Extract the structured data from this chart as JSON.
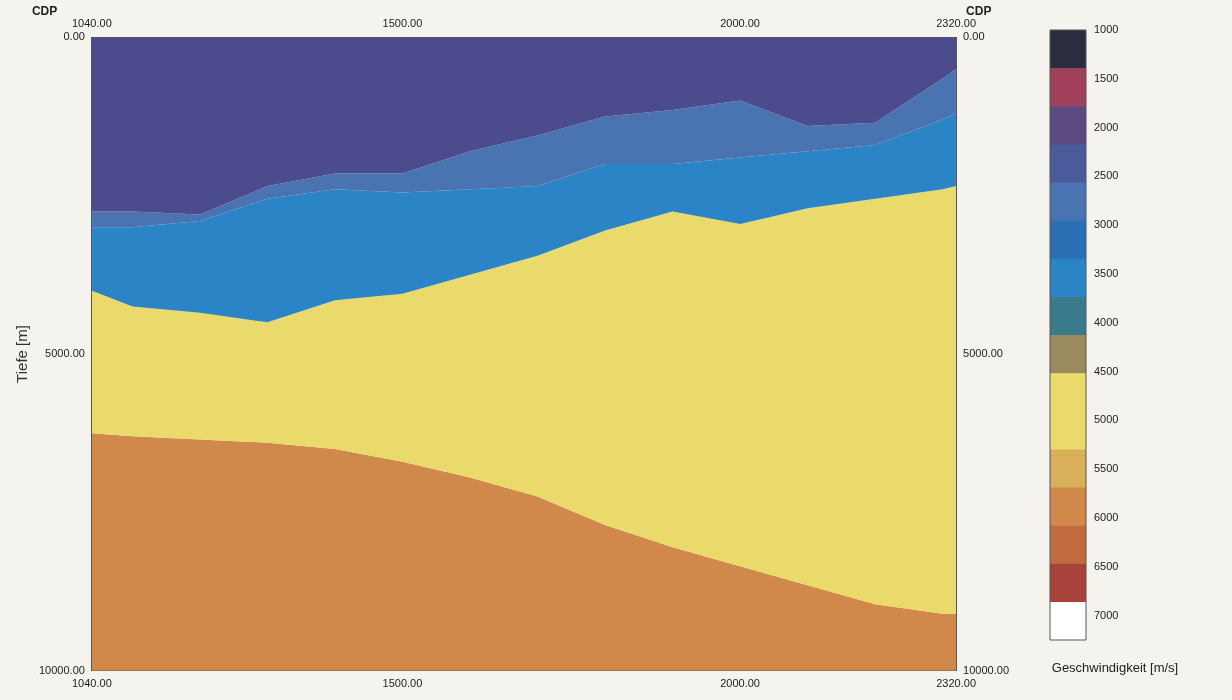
{
  "chart_data": {
    "type": "area",
    "stacked": true,
    "x": [
      1040,
      1100,
      1200,
      1300,
      1400,
      1500,
      1600,
      1700,
      1800,
      1900,
      2000,
      2100,
      2200,
      2300,
      2320
    ],
    "series": [
      {
        "color": "#4b4b8e",
        "values": [
          2750,
          2750,
          2800,
          2350,
          2150,
          2150,
          1800,
          1550,
          1250,
          1150,
          1000,
          1400,
          1350,
          650,
          500
        ]
      },
      {
        "color": "#4a73b2",
        "values": [
          250,
          250,
          100,
          200,
          250,
          300,
          600,
          800,
          750,
          850,
          900,
          400,
          350,
          650,
          700
        ]
      },
      {
        "color": "#2b84c6",
        "values": [
          1000,
          1250,
          1450,
          1950,
          1750,
          1600,
          1350,
          1100,
          1050,
          750,
          1050,
          900,
          850,
          1100,
          1150
        ]
      },
      {
        "color": "#e9da6b",
        "values": [
          2250,
          2050,
          2000,
          1900,
          2350,
          2650,
          3200,
          3800,
          4650,
          5300,
          5400,
          5950,
          6400,
          6700,
          6750
        ]
      },
      {
        "color": "#d0894a",
        "values": [
          3750,
          3700,
          3650,
          3600,
          3500,
          3300,
          3050,
          2750,
          2300,
          1950,
          1650,
          1350,
          1050,
          900,
          900
        ]
      }
    ],
    "x2label": "CDP",
    "ylabel": "Tiefe [m]",
    "clabel": "Geschwindigkeit [m/s]",
    "xlim": [
      1040,
      2320
    ],
    "xticks": [
      {
        "value": 1040,
        "label": "1040.00"
      },
      {
        "value": 1500,
        "label": "1500.00"
      },
      {
        "value": 2000,
        "label": "2000.00"
      },
      {
        "value": 2320,
        "label": "2320.00"
      }
    ],
    "x2lim": [
      1040,
      2320
    ],
    "x2ticks": [
      {
        "value": 1040,
        "label": "1040.00"
      },
      {
        "value": 1500,
        "label": "1500.00"
      },
      {
        "value": 2000,
        "label": "2000.00"
      },
      {
        "value": 2320,
        "label": "2320.00"
      }
    ],
    "ylim": [
      10000,
      0
    ],
    "yticks": [
      {
        "value": 0,
        "label": "0.00"
      },
      {
        "value": 5000,
        "label": "5000.00"
      },
      {
        "value": 10000,
        "label": "10000.00"
      }
    ],
    "y2lim": [
      10000,
      0
    ],
    "y2ticks": [
      {
        "value": 0,
        "label": "0.00"
      },
      {
        "value": 5000,
        "label": "5000.00"
      },
      {
        "value": 10000,
        "label": "10000.00"
      }
    ],
    "clim": [
      1000,
      7250
    ],
    "cticks": [
      1000,
      1500,
      2000,
      2500,
      3000,
      3500,
      4000,
      4500,
      5000,
      5500,
      6000,
      6500,
      7000
    ],
    "grid": false,
    "legend": false
  }
}
